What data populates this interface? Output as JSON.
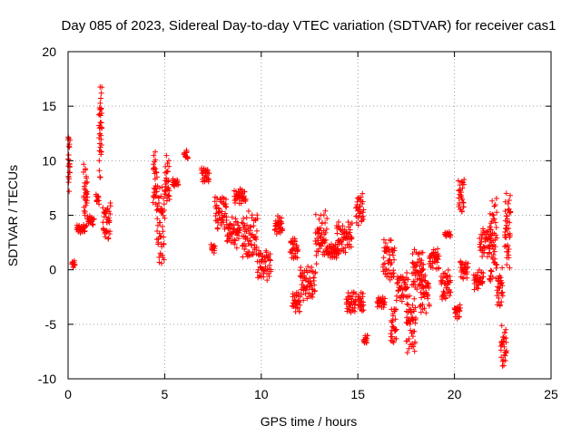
{
  "chart_data": {
    "type": "scatter",
    "title": "Day 085 of 2023, Sidereal Day-to-day VTEC variation (SDTVAR) for receiver cas1",
    "xlabel": "GPS time / hours",
    "ylabel": "SDTVAR / TECUs",
    "xlim": [
      0,
      25
    ],
    "ylim": [
      -10,
      20
    ],
    "xticks": [
      "0",
      "5",
      "10",
      "15",
      "20",
      "25"
    ],
    "yticks": [
      "20",
      "15",
      "10",
      "5",
      "0",
      "-5",
      "-10"
    ],
    "grid": true,
    "marker": "+",
    "color": "#ff0000",
    "series": [
      {
        "name": "SDTVAR",
        "x": [],
        "y": []
      }
    ],
    "segments": [
      [
        0.0,
        0.1,
        7.0,
        12.5
      ],
      [
        0.2,
        0.35,
        0.0,
        1.0
      ],
      [
        0.45,
        0.9,
        3.3,
        4.2
      ],
      [
        0.8,
        1.0,
        3.5,
        10.0
      ],
      [
        1.0,
        1.35,
        4.0,
        5.0
      ],
      [
        1.45,
        1.6,
        6.0,
        7.0
      ],
      [
        1.6,
        1.75,
        8.0,
        17.5
      ],
      [
        1.8,
        2.2,
        2.5,
        6.5
      ],
      [
        4.4,
        4.6,
        5.0,
        11.5
      ],
      [
        4.6,
        5.0,
        0.0,
        8.0
      ],
      [
        5.0,
        5.25,
        6.0,
        10.5
      ],
      [
        5.4,
        5.7,
        7.5,
        8.5
      ],
      [
        6.0,
        6.2,
        10.0,
        11.0
      ],
      [
        6.9,
        7.3,
        8.0,
        9.5
      ],
      [
        7.4,
        7.6,
        1.5,
        2.5
      ],
      [
        7.6,
        8.2,
        3.5,
        7.0
      ],
      [
        8.2,
        8.9,
        2.0,
        5.0
      ],
      [
        8.6,
        9.2,
        6.0,
        7.5
      ],
      [
        9.0,
        9.8,
        0.5,
        5.5
      ],
      [
        9.8,
        10.5,
        -1.0,
        2.0
      ],
      [
        10.7,
        11.1,
        3.0,
        5.0
      ],
      [
        11.5,
        11.9,
        1.0,
        3.0
      ],
      [
        11.6,
        12.0,
        -4.0,
        -2.0
      ],
      [
        12.0,
        12.8,
        -3.0,
        0.5
      ],
      [
        12.8,
        13.4,
        0.5,
        5.5
      ],
      [
        13.4,
        14.0,
        1.0,
        2.5
      ],
      [
        13.9,
        14.7,
        1.5,
        4.5
      ],
      [
        14.4,
        14.9,
        -4.0,
        -2.0
      ],
      [
        14.9,
        15.3,
        4.0,
        7.0
      ],
      [
        15.0,
        15.3,
        -4.0,
        -2.0
      ],
      [
        15.3,
        15.5,
        -6.8,
        -6.0
      ],
      [
        16.0,
        16.4,
        -3.5,
        -2.5
      ],
      [
        16.3,
        16.9,
        -1.0,
        3.0
      ],
      [
        16.7,
        17.0,
        -7.0,
        -3.0
      ],
      [
        17.0,
        17.6,
        -3.0,
        0.0
      ],
      [
        17.5,
        18.0,
        -8.0,
        -2.0
      ],
      [
        17.8,
        18.4,
        -2.0,
        2.0
      ],
      [
        18.2,
        18.7,
        -4.0,
        0.0
      ],
      [
        18.7,
        19.2,
        0.0,
        2.0
      ],
      [
        19.3,
        19.8,
        -3.0,
        0.0
      ],
      [
        19.5,
        19.8,
        3.0,
        3.5
      ],
      [
        20.0,
        20.3,
        -4.5,
        -3.0
      ],
      [
        20.2,
        20.5,
        5.0,
        8.5
      ],
      [
        20.3,
        20.7,
        -1.0,
        1.0
      ],
      [
        21.0,
        21.5,
        -2.0,
        0.0
      ],
      [
        21.3,
        21.9,
        1.0,
        4.0
      ],
      [
        21.8,
        22.2,
        -2.0,
        7.0
      ],
      [
        22.2,
        22.5,
        -3.5,
        0.5
      ],
      [
        22.4,
        22.7,
        -9.0,
        -5.0
      ],
      [
        22.6,
        22.9,
        0.0,
        8.0
      ]
    ]
  }
}
